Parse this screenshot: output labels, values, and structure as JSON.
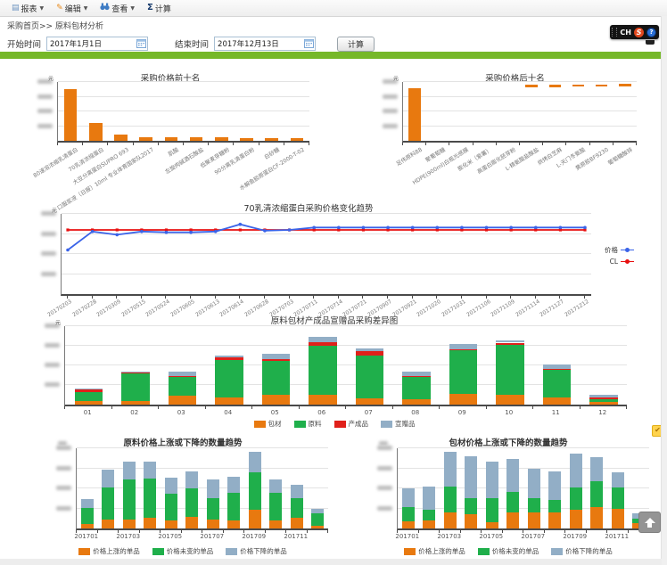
{
  "toolbar": {
    "items": [
      {
        "label": "报表",
        "icon": "report"
      },
      {
        "label": "编辑",
        "icon": "pencil"
      },
      {
        "label": "查看",
        "icon": "binoculars"
      },
      {
        "label": "计算",
        "icon": "sigma"
      }
    ]
  },
  "breadcrumb": {
    "home": "采购首页",
    "sep": ">>",
    "current": "原料包材分析"
  },
  "filters": {
    "start_label": "开始时间",
    "start_value": "2017年1月1日",
    "end_label": "结束时间",
    "end_value": "2017年12月13日",
    "calc_button": "计算"
  },
  "widget": {
    "lang": "CH",
    "logo": "S",
    "help": "?"
  },
  "colors": {
    "orange": "#E8790F",
    "green": "#1FAF4B",
    "red": "#E0201A",
    "steel": "#92AEC6",
    "line_blue": "#3A63E8",
    "line_red": "#E81010",
    "divider_green": "#76B829"
  },
  "chart_data": [
    {
      "type": "bar",
      "title": "采购价格前十名",
      "unit": "元",
      "color": "#E8790F",
      "categories": [
        "80速溶浓缩乳清蛋白",
        "70乳清浓缩蛋白",
        "大豆分离蛋白SUPRO 693",
        "口服浆液（日报）10ml 专业体育国家队2017",
        "肌酸",
        "左旋肉碱酒石酸盐",
        "低聚麦芽糖粉",
        "90分离乳清蛋白粉",
        "白砂糖",
        "水解鱼胶原蛋白CF-2000-T-02"
      ],
      "values": [
        88,
        30,
        11,
        6,
        6,
        6,
        6,
        5,
        5,
        5
      ],
      "ylim": [
        0,
        100
      ],
      "ylabels_obscured": true,
      "grid": true
    },
    {
      "type": "bar",
      "title": "采购价格后十名",
      "unit": "元",
      "color": "#E8790F",
      "categories": [
        "足伟原料88",
        "聚葡萄糖",
        "HDPE(900ml)白瓶光感膜",
        "膨化米（紫薯）",
        "高蛋白膨化胚芽粉",
        "L-精氨酸盐酸盐",
        "烘烤白芝麻",
        "L-天门冬氨酸",
        "黄原胶BF9230",
        "葡萄糖酸锌"
      ],
      "values": [
        90,
        0,
        0,
        0,
        0,
        95,
        95,
        96,
        96,
        97
      ],
      "bases": [
        0,
        0,
        0,
        0,
        0,
        91,
        91,
        92,
        92,
        93
      ],
      "ylim": [
        0,
        100
      ],
      "ylabels_obscured": true,
      "grid": true
    },
    {
      "type": "line",
      "title": "70乳清浓缩蛋白采购价格变化趋势",
      "unit": "元",
      "x": [
        "20170203",
        "20170228",
        "20170309",
        "20170515",
        "20170524",
        "20170605",
        "20170613",
        "20170614",
        "20170628",
        "20170703",
        "20170711",
        "20170714",
        "20170721",
        "20170907",
        "20170921",
        "20171020",
        "20171031",
        "20171106",
        "20171109",
        "20171114",
        "20171127",
        "20171212"
      ],
      "series": [
        {
          "name": "价格",
          "color": "#3A63E8",
          "marker": "circle",
          "values": [
            55,
            78,
            74,
            78,
            77,
            77,
            78,
            87,
            79,
            80,
            83,
            83,
            83,
            83,
            83,
            83,
            83,
            83,
            83,
            83,
            83,
            83
          ]
        },
        {
          "name": "CL",
          "color": "#E81010",
          "marker": "square",
          "values": [
            80,
            80,
            80,
            80,
            80,
            80,
            80,
            80,
            80,
            80,
            80,
            80,
            80,
            80,
            80,
            80,
            80,
            80,
            80,
            80,
            80,
            80
          ]
        }
      ],
      "ylim": [
        0,
        100
      ],
      "legend_position": "right",
      "ylabels_obscured": true,
      "grid": true
    },
    {
      "type": "stacked-bar",
      "title": "原料包材产成品宣赠品采购差异图",
      "unit": "元",
      "categories": [
        "01",
        "02",
        "03",
        "04",
        "05",
        "06",
        "07",
        "08",
        "09",
        "10",
        "11",
        "12"
      ],
      "series": [
        {
          "name": "包材",
          "color": "#E8790F",
          "values": [
            5,
            4,
            11,
            9,
            12,
            12,
            8,
            7,
            14,
            12,
            9,
            3
          ]
        },
        {
          "name": "原料",
          "color": "#1FAF4B",
          "values": [
            11,
            36,
            24,
            48,
            44,
            63,
            55,
            28,
            56,
            64,
            35,
            4
          ]
        },
        {
          "name": "产成品",
          "color": "#E0201A",
          "values": [
            3,
            1,
            1,
            3,
            2,
            5,
            5,
            1,
            1,
            3,
            1,
            2
          ]
        },
        {
          "name": "宣赠品",
          "color": "#92AEC6",
          "values": [
            2,
            1,
            6,
            3,
            7,
            6,
            4,
            6,
            6,
            3,
            6,
            3
          ]
        }
      ],
      "ylim": [
        0,
        100
      ],
      "legend_position": "bottom",
      "ylabels_obscured": true,
      "grid": true
    },
    {
      "type": "stacked-bar",
      "title": "原料价格上涨或下降的数量趋势",
      "categories": [
        "201701",
        "201702",
        "201703",
        "201704",
        "201705",
        "201706",
        "201707",
        "201708",
        "201709",
        "201710",
        "201711",
        "201712"
      ],
      "xlabel_every": 2,
      "series": [
        {
          "name": "价格上涨的单品",
          "color": "#E8790F",
          "values": [
            6,
            12,
            12,
            14,
            10,
            15,
            12,
            10,
            24,
            11,
            14,
            3
          ]
        },
        {
          "name": "价格未变的单品",
          "color": "#1FAF4B",
          "values": [
            21,
            42,
            52,
            51,
            35,
            38,
            28,
            37,
            50,
            36,
            26,
            17
          ]
        },
        {
          "name": "价格下降的单品",
          "color": "#92AEC6",
          "values": [
            11,
            23,
            24,
            23,
            21,
            22,
            24,
            21,
            26,
            17,
            17,
            6
          ]
        }
      ],
      "ylim": [
        0,
        105
      ],
      "legend_position": "bottom",
      "ylabels_obscured": true,
      "grid": true
    },
    {
      "type": "stacked-bar",
      "title": "包材价格上涨或下降的数量趋势",
      "categories": [
        "201701",
        "201702",
        "201703",
        "201704",
        "201705",
        "201706",
        "201707",
        "201708",
        "201709",
        "201710",
        "201711",
        "201712"
      ],
      "xlabel_every": 2,
      "series": [
        {
          "name": "价格上涨的单品",
          "color": "#E8790F",
          "values": [
            9,
            10,
            21,
            19,
            8,
            21,
            21,
            21,
            24,
            28,
            26,
            7
          ]
        },
        {
          "name": "价格未变的单品",
          "color": "#1FAF4B",
          "values": [
            19,
            14,
            34,
            21,
            32,
            27,
            19,
            16,
            30,
            34,
            28,
            6
          ]
        },
        {
          "name": "价格下降的单品",
          "color": "#92AEC6",
          "values": [
            24,
            31,
            45,
            55,
            48,
            43,
            38,
            38,
            44,
            31,
            19,
            7
          ]
        }
      ],
      "ylim": [
        0,
        105
      ],
      "legend_position": "bottom",
      "ylabels_obscured": true,
      "grid": true
    }
  ]
}
